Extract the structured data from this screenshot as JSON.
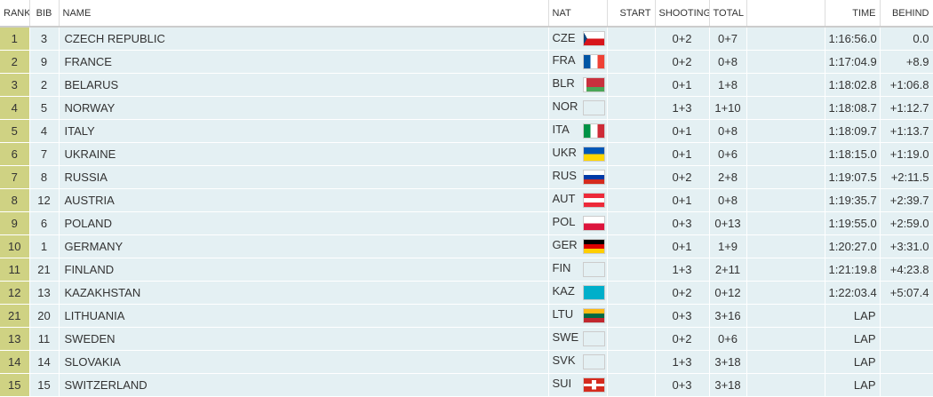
{
  "table": {
    "columns": [
      "RANK",
      "BIB",
      "NAME",
      "NAT",
      "START",
      "SHOOTING",
      "TOTAL",
      "TIME",
      "BEHIND"
    ],
    "rows": [
      {
        "rank": 1,
        "bib": 3,
        "name": "CZECH REPUBLIC",
        "nat": "CZE",
        "shooting": "0+2",
        "total": "0+7",
        "time": "1:16:56.0",
        "behind": "0.0"
      },
      {
        "rank": 2,
        "bib": 9,
        "name": "FRANCE",
        "nat": "FRA",
        "shooting": "0+2",
        "total": "0+8",
        "time": "1:17:04.9",
        "behind": "+8.9"
      },
      {
        "rank": 3,
        "bib": 2,
        "name": "BELARUS",
        "nat": "BLR",
        "shooting": "0+1",
        "total": "1+8",
        "time": "1:18:02.8",
        "behind": "+1:06.8"
      },
      {
        "rank": 4,
        "bib": 5,
        "name": "NORWAY",
        "nat": "NOR",
        "shooting": "1+3",
        "total": "1+10",
        "time": "1:18:08.7",
        "behind": "+1:12.7"
      },
      {
        "rank": 5,
        "bib": 4,
        "name": "ITALY",
        "nat": "ITA",
        "shooting": "0+1",
        "total": "0+8",
        "time": "1:18:09.7",
        "behind": "+1:13.7"
      },
      {
        "rank": 6,
        "bib": 7,
        "name": "UKRAINE",
        "nat": "UKR",
        "shooting": "0+1",
        "total": "0+6",
        "time": "1:18:15.0",
        "behind": "+1:19.0"
      },
      {
        "rank": 7,
        "bib": 8,
        "name": "RUSSIA",
        "nat": "RUS",
        "shooting": "0+2",
        "total": "2+8",
        "time": "1:19:07.5",
        "behind": "+2:11.5"
      },
      {
        "rank": 8,
        "bib": 12,
        "name": "AUSTRIA",
        "nat": "AUT",
        "shooting": "0+1",
        "total": "0+8",
        "time": "1:19:35.7",
        "behind": "+2:39.7"
      },
      {
        "rank": 9,
        "bib": 6,
        "name": "POLAND",
        "nat": "POL",
        "shooting": "0+3",
        "total": "0+13",
        "time": "1:19:55.0",
        "behind": "+2:59.0"
      },
      {
        "rank": 10,
        "bib": 1,
        "name": "GERMANY",
        "nat": "GER",
        "shooting": "0+1",
        "total": "1+9",
        "time": "1:20:27.0",
        "behind": "+3:31.0"
      },
      {
        "rank": 11,
        "bib": 21,
        "name": "FINLAND",
        "nat": "FIN",
        "shooting": "1+3",
        "total": "2+11",
        "time": "1:21:19.8",
        "behind": "+4:23.8"
      },
      {
        "rank": 12,
        "bib": 13,
        "name": "KAZAKHSTAN",
        "nat": "KAZ",
        "shooting": "0+2",
        "total": "0+12",
        "time": "1:22:03.4",
        "behind": "+5:07.4"
      },
      {
        "rank": 21,
        "bib": 20,
        "name": "LITHUANIA",
        "nat": "LTU",
        "shooting": "0+3",
        "total": "3+16",
        "time": "LAP"
      },
      {
        "rank": 13,
        "bib": 11,
        "name": "SWEDEN",
        "nat": "SWE",
        "shooting": "0+2",
        "total": "0+6",
        "time": "LAP"
      },
      {
        "rank": 14,
        "bib": 14,
        "name": "SLOVAKIA",
        "nat": "SVK",
        "shooting": "1+3",
        "total": "3+18",
        "time": "LAP"
      },
      {
        "rank": 15,
        "bib": 15,
        "name": "SWITZERLAND",
        "nat": "SUI",
        "shooting": "0+3",
        "total": "3+18",
        "time": "LAP"
      }
    ]
  }
}
